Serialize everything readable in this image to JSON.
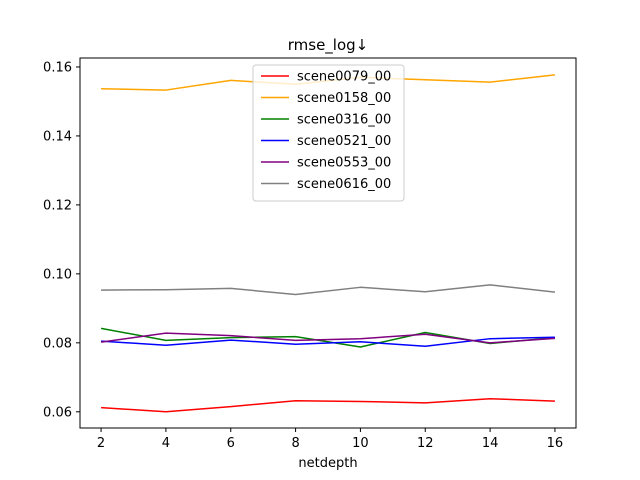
{
  "chart_data": {
    "type": "line",
    "title": "rmse_log↓",
    "xlabel": "netdepth",
    "ylabel": "",
    "x": [
      2,
      4,
      6,
      8,
      10,
      12,
      14,
      16
    ],
    "xlim": [
      1.35,
      16.65
    ],
    "ylim": [
      0.0553,
      0.1626
    ],
    "xticks": [
      2,
      4,
      6,
      8,
      10,
      12,
      14,
      16
    ],
    "xtick_labels": [
      "2",
      "4",
      "6",
      "8",
      "10",
      "12",
      "14",
      "16"
    ],
    "yticks": [
      0.06,
      0.08,
      0.1,
      0.12,
      0.14,
      0.16
    ],
    "ytick_labels": [
      "0.06",
      "0.08",
      "0.10",
      "0.12",
      "0.14",
      "0.16"
    ],
    "grid": false,
    "legend_position": "upper-center",
    "series": [
      {
        "name": "scene0079_00",
        "color": "#ff0000",
        "values": [
          0.0612,
          0.06,
          0.0615,
          0.0632,
          0.063,
          0.0626,
          0.0638,
          0.0631
        ]
      },
      {
        "name": "scene0158_00",
        "color": "#ffa500",
        "values": [
          0.1537,
          0.1533,
          0.1561,
          0.155,
          0.157,
          0.1563,
          0.1556,
          0.1577
        ]
      },
      {
        "name": "scene0316_00",
        "color": "#008000",
        "values": [
          0.0842,
          0.0807,
          0.0815,
          0.0818,
          0.0788,
          0.083,
          0.0798,
          0.0815
        ]
      },
      {
        "name": "scene0521_00",
        "color": "#0000ff",
        "values": [
          0.0805,
          0.0793,
          0.0808,
          0.0796,
          0.0803,
          0.079,
          0.0812,
          0.0816
        ]
      },
      {
        "name": "scene0553_00",
        "color": "#800080",
        "values": [
          0.0802,
          0.0828,
          0.0821,
          0.0807,
          0.0812,
          0.0825,
          0.08,
          0.0813
        ]
      },
      {
        "name": "scene0616_00",
        "color": "#808080",
        "values": [
          0.0953,
          0.0954,
          0.0958,
          0.094,
          0.0961,
          0.0948,
          0.0968,
          0.0947
        ]
      }
    ]
  }
}
